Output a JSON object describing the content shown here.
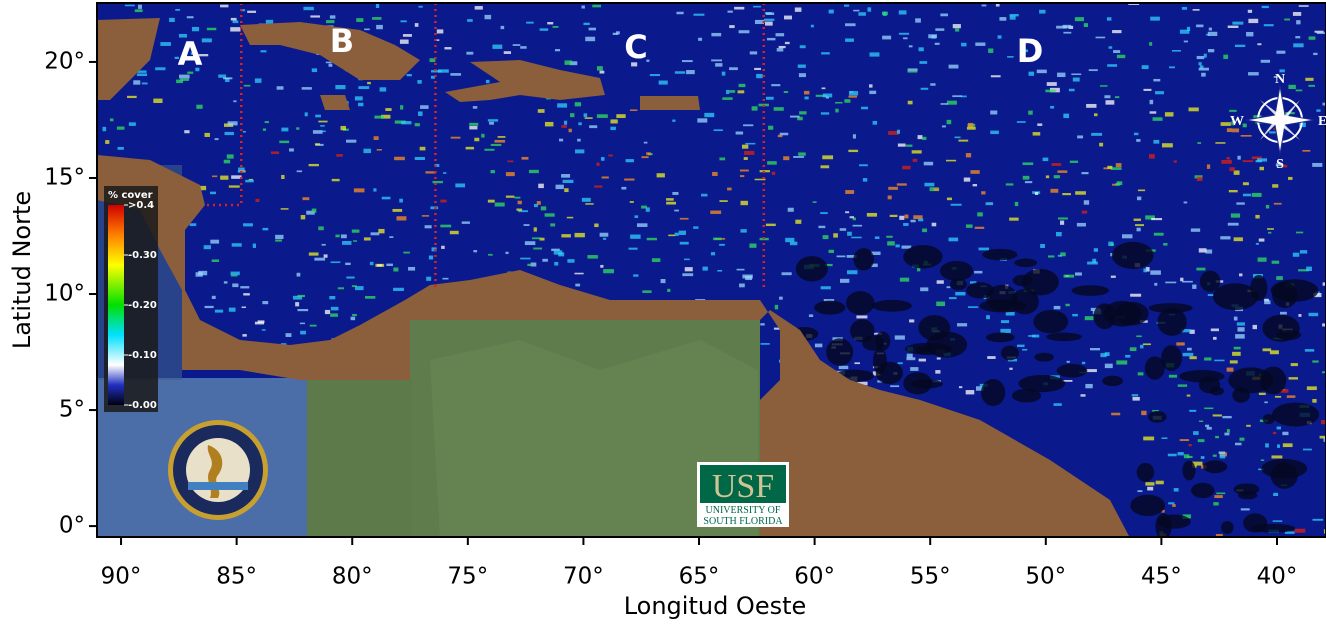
{
  "map": {
    "xlabel": "Longitud Oeste",
    "ylabel": "Latitud Norte",
    "xlim": [
      91.04,
      37.88
    ],
    "ylim": [
      -0.47,
      22.54
    ],
    "xticks": [
      {
        "value": 90,
        "label": "90°"
      },
      {
        "value": 85,
        "label": "85°"
      },
      {
        "value": 80,
        "label": "80°"
      },
      {
        "value": 75,
        "label": "75°"
      },
      {
        "value": 70,
        "label": "70°"
      },
      {
        "value": 65,
        "label": "65°"
      },
      {
        "value": 60,
        "label": "60°"
      },
      {
        "value": 55,
        "label": "55°"
      },
      {
        "value": 50,
        "label": "50°"
      },
      {
        "value": 45,
        "label": "45°"
      },
      {
        "value": 40,
        "label": "40°"
      }
    ],
    "yticks": [
      {
        "value": 0,
        "label": "0°"
      },
      {
        "value": 5,
        "label": "5°"
      },
      {
        "value": 10,
        "label": "10°"
      },
      {
        "value": 15,
        "label": "15°"
      },
      {
        "value": 20,
        "label": "20°"
      }
    ],
    "regions": [
      "A",
      "B",
      "C",
      "D"
    ],
    "dividers": [
      {
        "lon": 84.8,
        "lat_end": 13.8
      },
      {
        "lon": 76.4,
        "lat_end": 10.3
      },
      {
        "lon": 62.2,
        "lat_end": 10.3
      }
    ],
    "colorbar": {
      "title": "% cover",
      "ticks": [
        {
          "value": 0.4,
          "label": ">0.4"
        },
        {
          "value": 0.3,
          "label": "-0.30"
        },
        {
          "value": 0.2,
          "label": "-0.20"
        },
        {
          "value": 0.1,
          "label": "-0.10"
        },
        {
          "value": 0.0,
          "label": "-0.00"
        }
      ]
    },
    "compass": {
      "north": "N",
      "south": "S",
      "east": "E",
      "west": "W"
    },
    "usf_logo": {
      "name": "USF",
      "line1": "UNIVERSITY OF",
      "line2": "SOUTH FLORIDA"
    }
  }
}
